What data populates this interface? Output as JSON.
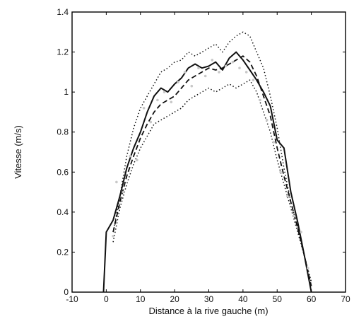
{
  "chart_data": {
    "type": "line",
    "xlabel": "Distance à la rive gauche (m)",
    "ylabel": "Vitesse (m/s)",
    "xlim": [
      -10,
      70
    ],
    "ylim": [
      0,
      1.4
    ],
    "xticks": [
      -10,
      0,
      10,
      20,
      30,
      40,
      50,
      60,
      70
    ],
    "yticks": [
      0,
      0.2,
      0.4,
      0.6,
      0.8,
      1,
      1.2,
      1.4
    ],
    "xtick_labels": [
      "-10",
      "0",
      "10",
      "20",
      "30",
      "40",
      "50",
      "60",
      "70"
    ],
    "ytick_labels": [
      "0",
      "0.2",
      "0.4",
      "0.6",
      "0.8",
      "1",
      "1.2",
      "1.4"
    ],
    "grid": false,
    "legend": "none",
    "colors": {
      "line": "#111111",
      "scatter": "#c8c8c8",
      "frame": "#000000"
    },
    "series": [
      {
        "style": "solid",
        "x": [
          -0.8,
          0,
          2,
          4,
          6,
          8,
          10,
          12,
          14,
          16,
          18,
          20,
          22,
          24,
          26,
          28,
          30,
          32,
          34,
          36,
          38,
          40,
          42,
          44,
          46,
          48,
          50,
          52,
          54,
          56,
          58,
          60
        ],
        "y": [
          0,
          0.3,
          0.36,
          0.48,
          0.62,
          0.72,
          0.8,
          0.9,
          0.98,
          1.02,
          1.0,
          1.04,
          1.07,
          1.12,
          1.14,
          1.12,
          1.13,
          1.15,
          1.11,
          1.17,
          1.2,
          1.16,
          1.11,
          1.06,
          1.0,
          0.93,
          0.76,
          0.72,
          0.5,
          0.35,
          0.18,
          0.0
        ]
      },
      {
        "style": "dashed",
        "x": [
          2,
          4,
          6,
          8,
          10,
          12,
          14,
          16,
          18,
          20,
          22,
          24,
          26,
          28,
          30,
          32,
          34,
          36,
          38,
          40,
          42,
          44,
          46,
          48,
          50,
          52,
          54,
          56,
          58,
          60
        ],
        "y": [
          0.3,
          0.45,
          0.58,
          0.68,
          0.77,
          0.84,
          0.9,
          0.94,
          0.96,
          0.98,
          1.02,
          1.06,
          1.08,
          1.1,
          1.12,
          1.11,
          1.12,
          1.14,
          1.16,
          1.18,
          1.15,
          1.08,
          0.98,
          0.88,
          0.72,
          0.58,
          0.45,
          0.32,
          0.18,
          0.03
        ]
      },
      {
        "style": "dotted",
        "x": [
          2,
          4,
          6,
          8,
          10,
          12,
          14,
          16,
          18,
          20,
          22,
          24,
          26,
          28,
          30,
          32,
          34,
          36,
          38,
          40,
          42,
          44,
          46,
          48,
          50,
          52,
          54,
          56,
          58,
          60
        ],
        "y": [
          0.3,
          0.48,
          0.68,
          0.82,
          0.92,
          0.98,
          1.04,
          1.1,
          1.12,
          1.15,
          1.16,
          1.2,
          1.18,
          1.2,
          1.22,
          1.24,
          1.2,
          1.25,
          1.28,
          1.3,
          1.28,
          1.2,
          1.12,
          0.98,
          0.82,
          0.62,
          0.45,
          0.32,
          0.18,
          0.05
        ]
      },
      {
        "style": "dotted",
        "x": [
          2,
          4,
          6,
          8,
          10,
          12,
          14,
          16,
          18,
          20,
          22,
          24,
          26,
          28,
          30,
          32,
          34,
          36,
          38,
          40,
          42,
          44,
          46,
          48,
          50,
          52,
          54,
          56,
          58,
          60
        ],
        "y": [
          0.25,
          0.42,
          0.54,
          0.64,
          0.72,
          0.78,
          0.84,
          0.86,
          0.88,
          0.9,
          0.92,
          0.96,
          0.98,
          1.0,
          1.02,
          1.0,
          1.02,
          1.04,
          1.02,
          1.04,
          1.06,
          1.0,
          0.9,
          0.8,
          0.66,
          0.54,
          0.42,
          0.3,
          0.18,
          0.05
        ]
      },
      {
        "style": "scatter",
        "x": [
          2,
          3,
          5,
          7,
          9,
          11,
          13,
          15,
          17,
          19,
          21,
          23,
          25,
          27,
          29,
          31,
          33,
          35,
          37,
          39,
          41,
          43,
          45,
          47,
          49,
          51,
          53,
          55,
          57,
          59
        ],
        "y": [
          0.28,
          0.55,
          0.5,
          0.68,
          0.66,
          0.92,
          0.85,
          0.96,
          1.0,
          0.95,
          1.05,
          1.1,
          1.03,
          1.12,
          1.08,
          1.16,
          1.1,
          1.13,
          1.15,
          1.12,
          1.1,
          1.06,
          0.96,
          0.86,
          0.75,
          0.6,
          0.48,
          0.38,
          0.3,
          0.12
        ]
      }
    ]
  }
}
